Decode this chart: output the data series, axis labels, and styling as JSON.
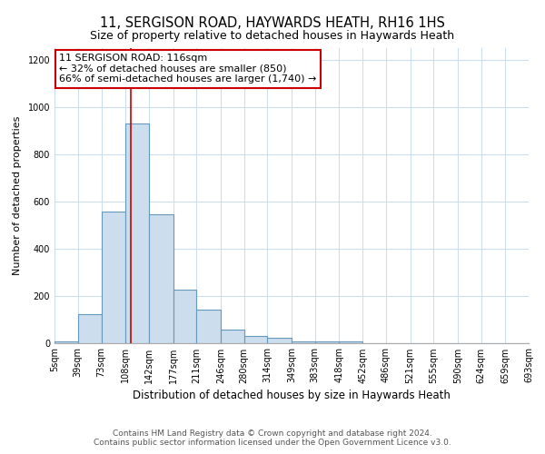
{
  "title": "11, SERGISON ROAD, HAYWARDS HEATH, RH16 1HS",
  "subtitle": "Size of property relative to detached houses in Haywards Heath",
  "xlabel": "Distribution of detached houses by size in Haywards Heath",
  "ylabel": "Number of detached properties",
  "bar_values": [
    5,
    120,
    555,
    930,
    545,
    225,
    140,
    55,
    30,
    20,
    5,
    5,
    5,
    0,
    0,
    0,
    0,
    0,
    0,
    0
  ],
  "bin_edges": [
    5,
    39,
    73,
    108,
    142,
    177,
    211,
    246,
    280,
    314,
    349,
    383,
    418,
    452,
    486,
    521,
    555,
    590,
    624,
    659,
    693
  ],
  "tick_labels": [
    "5sqm",
    "39sqm",
    "73sqm",
    "108sqm",
    "142sqm",
    "177sqm",
    "211sqm",
    "246sqm",
    "280sqm",
    "314sqm",
    "349sqm",
    "383sqm",
    "418sqm",
    "452sqm",
    "486sqm",
    "521sqm",
    "555sqm",
    "590sqm",
    "624sqm",
    "659sqm",
    "693sqm"
  ],
  "bar_facecolor": "#ccdded",
  "bar_edgecolor": "#6699bb",
  "bar_linewidth": 0.8,
  "red_line_x": 116,
  "red_line_color": "#cc0000",
  "annotation_text": "11 SERGISON ROAD: 116sqm\n← 32% of detached houses are smaller (850)\n66% of semi-detached houses are larger (1,740) →",
  "annotation_box_edgecolor": "#cc0000",
  "annotation_box_facecolor": "#ffffff",
  "ylim": [
    0,
    1250
  ],
  "background_color": "#ffffff",
  "grid_color": "#ccdded",
  "footer_text": "Contains HM Land Registry data © Crown copyright and database right 2024.\nContains public sector information licensed under the Open Government Licence v3.0.",
  "title_fontsize": 10.5,
  "subtitle_fontsize": 9,
  "xlabel_fontsize": 8.5,
  "ylabel_fontsize": 8,
  "tick_fontsize": 7,
  "annotation_fontsize": 8,
  "footer_fontsize": 6.5,
  "yticks": [
    0,
    200,
    400,
    600,
    800,
    1000,
    1200
  ]
}
